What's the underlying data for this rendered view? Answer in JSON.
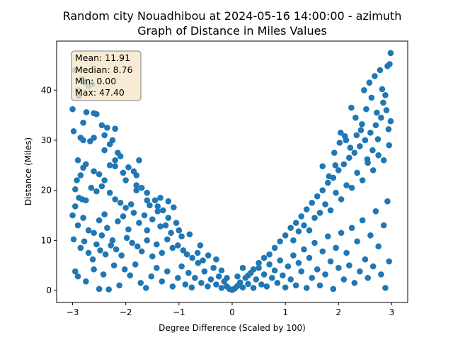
{
  "chart_data": {
    "type": "scatter",
    "title_line1": "Random city Nouadhibou at 2024-05-16 14:00:00  - azimuth",
    "title_line2": "Graph of Distance in Miles Values",
    "xlabel": "Degree Difference (Scaled by 100)",
    "ylabel": "Distance (Miles)",
    "xlim": [
      -3.3,
      3.3
    ],
    "ylim": [
      -2.4,
      49.8
    ],
    "xticks": [
      -3,
      -2,
      -1,
      0,
      1,
      2,
      3
    ],
    "yticks": [
      0,
      10,
      20,
      30,
      40
    ],
    "grid": false,
    "marker_color": "#1f77b4",
    "stats": {
      "mean": "Mean: 11.91",
      "median": "Median: 8.76",
      "min": "Min: 0.00",
      "max": "Max: 47.40"
    },
    "stats_box_color": "#f5e6c8",
    "points": [
      [
        -3.0,
        36.2
      ],
      [
        -2.98,
        31.8
      ],
      [
        -2.95,
        44.0
      ],
      [
        -2.9,
        40.0
      ],
      [
        -2.88,
        38.8
      ],
      [
        -2.85,
        30.5
      ],
      [
        -2.83,
        42.2
      ],
      [
        -2.8,
        30.0
      ],
      [
        -2.77,
        41.5
      ],
      [
        -2.74,
        35.6
      ],
      [
        -2.7,
        40.8
      ],
      [
        -2.67,
        29.8
      ],
      [
        -2.63,
        41.2
      ],
      [
        -2.6,
        35.4
      ],
      [
        -2.55,
        35.2
      ],
      [
        -2.45,
        33.0
      ],
      [
        -2.4,
        31.0
      ],
      [
        -2.35,
        32.5
      ],
      [
        -2.3,
        29.2
      ],
      [
        -2.25,
        30.0
      ],
      [
        -2.2,
        32.3
      ],
      [
        -2.15,
        27.5
      ],
      [
        -2.1,
        26.8
      ],
      [
        -2.05,
        23.5
      ],
      [
        -2.9,
        26.0
      ],
      [
        -2.85,
        23.0
      ],
      [
        -2.8,
        24.5
      ],
      [
        -2.75,
        25.2
      ],
      [
        -2.6,
        23.8
      ],
      [
        -2.5,
        23.2
      ],
      [
        -2.4,
        22.0
      ],
      [
        -2.3,
        25.0
      ],
      [
        -2.2,
        24.8
      ],
      [
        -1.95,
        24.6
      ],
      [
        -1.85,
        23.8
      ],
      [
        -1.8,
        23.0
      ],
      [
        -1.75,
        26.0
      ],
      [
        -2.95,
        20.2
      ],
      [
        -2.92,
        22.0
      ],
      [
        -2.88,
        18.5
      ],
      [
        -2.82,
        18.2
      ],
      [
        -2.75,
        18.0
      ],
      [
        -2.65,
        20.5
      ],
      [
        -2.55,
        19.8
      ],
      [
        -2.45,
        20.8
      ],
      [
        -2.3,
        19.5
      ],
      [
        -2.2,
        18.2
      ],
      [
        -2.1,
        17.5
      ],
      [
        -2.0,
        16.5
      ],
      [
        -1.9,
        17.2
      ],
      [
        -1.8,
        21.0
      ],
      [
        -1.7,
        20.5
      ],
      [
        -1.6,
        19.5
      ],
      [
        -1.55,
        17.0
      ],
      [
        -1.45,
        18.0
      ],
      [
        -1.35,
        18.5
      ],
      [
        -1.3,
        16.0
      ],
      [
        -1.2,
        17.8
      ],
      [
        -1.1,
        16.6
      ],
      [
        -3.0,
        15.0
      ],
      [
        -2.95,
        16.8
      ],
      [
        -2.9,
        13.0
      ],
      [
        -2.8,
        14.5
      ],
      [
        -2.7,
        12.0
      ],
      [
        -2.6,
        11.5
      ],
      [
        -2.5,
        14.0
      ],
      [
        -2.45,
        11.0
      ],
      [
        -2.4,
        15.2
      ],
      [
        -2.35,
        12.5
      ],
      [
        -2.25,
        10.0
      ],
      [
        -2.15,
        13.8
      ],
      [
        -2.05,
        14.8
      ],
      [
        -1.95,
        12.2
      ],
      [
        -1.85,
        15.5
      ],
      [
        -1.75,
        13.5
      ],
      [
        -1.65,
        15.0
      ],
      [
        -1.6,
        12.0
      ],
      [
        -1.5,
        14.2
      ],
      [
        -1.4,
        15.8
      ],
      [
        -1.35,
        12.8
      ],
      [
        -1.25,
        13.0
      ],
      [
        -1.15,
        11.5
      ],
      [
        -1.05,
        13.5
      ],
      [
        -0.95,
        10.8
      ],
      [
        -2.98,
        10.2
      ],
      [
        -2.85,
        8.5
      ],
      [
        -2.78,
        9.8
      ],
      [
        -2.7,
        7.5
      ],
      [
        -2.62,
        6.2
      ],
      [
        -2.55,
        9.2
      ],
      [
        -2.48,
        8.0
      ],
      [
        -2.38,
        7.2
      ],
      [
        -2.28,
        9.0
      ],
      [
        -2.18,
        8.2
      ],
      [
        -2.08,
        7.0
      ],
      [
        -1.98,
        10.5
      ],
      [
        -1.88,
        9.5
      ],
      [
        -1.78,
        8.8
      ],
      [
        -1.7,
        7.8
      ],
      [
        -1.6,
        10.0
      ],
      [
        -1.5,
        6.8
      ],
      [
        -1.42,
        9.2
      ],
      [
        -1.32,
        7.5
      ],
      [
        -1.22,
        10.2
      ],
      [
        -1.12,
        8.5
      ],
      [
        -1.02,
        9.0
      ],
      [
        -0.92,
        8.0
      ],
      [
        -0.85,
        7.2
      ],
      [
        -0.75,
        6.5
      ],
      [
        -0.65,
        7.5
      ],
      [
        -0.55,
        6.0
      ],
      [
        -0.45,
        7.0
      ],
      [
        -2.95,
        3.8
      ],
      [
        -2.9,
        2.8
      ],
      [
        -2.75,
        1.8
      ],
      [
        -2.6,
        4.2
      ],
      [
        -2.5,
        0.3
      ],
      [
        -2.42,
        3.2
      ],
      [
        -2.32,
        0.2
      ],
      [
        -2.22,
        5.0
      ],
      [
        -2.12,
        1.0
      ],
      [
        -2.02,
        4.2
      ],
      [
        -1.92,
        3.0
      ],
      [
        -1.82,
        5.2
      ],
      [
        -1.72,
        1.5
      ],
      [
        -1.62,
        0.5
      ],
      [
        -1.52,
        2.8
      ],
      [
        -1.42,
        4.5
      ],
      [
        -1.32,
        1.8
      ],
      [
        -1.22,
        3.8
      ],
      [
        -1.12,
        0.8
      ],
      [
        -1.02,
        2.5
      ],
      [
        -0.95,
        4.8
      ],
      [
        -0.88,
        1.2
      ],
      [
        -0.82,
        3.5
      ],
      [
        -0.76,
        0.6
      ],
      [
        -0.7,
        2.5
      ],
      [
        -0.64,
        5.5
      ],
      [
        -0.58,
        1.5
      ],
      [
        -0.52,
        3.8
      ],
      [
        -0.46,
        0.8
      ],
      [
        -0.4,
        2.2
      ],
      [
        -0.35,
        4.5
      ],
      [
        -0.3,
        1.2
      ],
      [
        -0.25,
        2.8
      ],
      [
        -0.2,
        0.5
      ],
      [
        -0.15,
        1.8
      ],
      [
        -0.1,
        0.8
      ],
      [
        -0.05,
        0.3
      ],
      [
        0.0,
        0.1
      ],
      [
        0.05,
        0.4
      ],
      [
        0.1,
        0.9
      ],
      [
        0.15,
        1.6
      ],
      [
        0.2,
        0.6
      ],
      [
        0.25,
        2.5
      ],
      [
        0.3,
        1.3
      ],
      [
        0.35,
        3.5
      ],
      [
        0.4,
        0.5
      ],
      [
        0.45,
        2.2
      ],
      [
        0.5,
        4.5
      ],
      [
        0.55,
        1.2
      ],
      [
        0.6,
        3.2
      ],
      [
        0.65,
        0.8
      ],
      [
        0.7,
        5.2
      ],
      [
        0.75,
        2.5
      ],
      [
        0.8,
        4.0
      ],
      [
        0.85,
        1.5
      ],
      [
        0.9,
        6.0
      ],
      [
        0.95,
        3.0
      ],
      [
        1.0,
        0.6
      ],
      [
        1.05,
        4.8
      ],
      [
        1.1,
        2.2
      ],
      [
        1.15,
        7.0
      ],
      [
        1.2,
        1.0
      ],
      [
        1.25,
        5.5
      ],
      [
        1.3,
        3.8
      ],
      [
        1.35,
        8.2
      ],
      [
        1.4,
        0.5
      ],
      [
        1.45,
        6.5
      ],
      [
        1.5,
        2.5
      ],
      [
        1.55,
        9.5
      ],
      [
        1.6,
        4.2
      ],
      [
        1.65,
        1.0
      ],
      [
        1.7,
        7.8
      ],
      [
        1.75,
        3.2
      ],
      [
        1.8,
        10.8
      ],
      [
        1.85,
        5.8
      ],
      [
        1.9,
        0.3
      ],
      [
        1.95,
        8.5
      ],
      [
        2.0,
        4.5
      ],
      [
        2.05,
        11.5
      ],
      [
        2.1,
        2.2
      ],
      [
        2.15,
        7.5
      ],
      [
        2.2,
        5.0
      ],
      [
        2.25,
        12.5
      ],
      [
        2.3,
        1.5
      ],
      [
        2.35,
        9.8
      ],
      [
        2.4,
        3.8
      ],
      [
        2.45,
        14.0
      ],
      [
        2.5,
        6.2
      ],
      [
        2.55,
        2.5
      ],
      [
        2.6,
        11.0
      ],
      [
        2.65,
        4.8
      ],
      [
        2.7,
        15.8
      ],
      [
        2.75,
        8.8
      ],
      [
        2.8,
        3.2
      ],
      [
        2.85,
        13.0
      ],
      [
        2.88,
        0.5
      ],
      [
        2.92,
        17.8
      ],
      [
        2.95,
        5.8
      ],
      [
        0.3,
        3.0
      ],
      [
        0.4,
        4.2
      ],
      [
        0.5,
        5.5
      ],
      [
        0.6,
        6.5
      ],
      [
        0.7,
        7.2
      ],
      [
        0.8,
        8.5
      ],
      [
        0.9,
        9.8
      ],
      [
        1.0,
        11.0
      ],
      [
        1.1,
        12.5
      ],
      [
        1.2,
        13.5
      ],
      [
        1.3,
        14.8
      ],
      [
        1.4,
        16.2
      ],
      [
        1.5,
        17.5
      ],
      [
        1.6,
        18.8
      ],
      [
        1.7,
        20.0
      ],
      [
        1.8,
        21.5
      ],
      [
        1.9,
        22.5
      ],
      [
        2.0,
        24.0
      ],
      [
        2.1,
        25.2
      ],
      [
        2.2,
        26.5
      ],
      [
        2.3,
        27.5
      ],
      [
        2.4,
        28.8
      ],
      [
        2.5,
        30.0
      ],
      [
        2.6,
        31.5
      ],
      [
        2.7,
        33.0
      ],
      [
        2.8,
        34.5
      ],
      [
        2.9,
        36.0
      ],
      [
        1.15,
        10.0
      ],
      [
        1.25,
        11.8
      ],
      [
        1.35,
        13.0
      ],
      [
        1.45,
        12.0
      ],
      [
        1.55,
        14.5
      ],
      [
        1.65,
        15.5
      ],
      [
        1.75,
        17.2
      ],
      [
        1.85,
        16.0
      ],
      [
        1.95,
        19.5
      ],
      [
        2.05,
        18.2
      ],
      [
        2.15,
        21.0
      ],
      [
        2.25,
        20.5
      ],
      [
        2.35,
        23.5
      ],
      [
        2.45,
        22.0
      ],
      [
        2.55,
        25.5
      ],
      [
        2.65,
        24.0
      ],
      [
        2.75,
        27.0
      ],
      [
        2.85,
        26.0
      ],
      [
        2.95,
        29.0
      ],
      [
        1.7,
        24.8
      ],
      [
        1.82,
        22.8
      ],
      [
        1.92,
        27.5
      ],
      [
        2.02,
        29.5
      ],
      [
        2.12,
        30.8
      ],
      [
        2.22,
        28.5
      ],
      [
        2.32,
        34.5
      ],
      [
        2.42,
        32.0
      ],
      [
        2.52,
        36.2
      ],
      [
        2.62,
        38.5
      ],
      [
        2.72,
        35.5
      ],
      [
        2.82,
        40.2
      ],
      [
        2.92,
        44.8
      ],
      [
        2.98,
        47.4
      ],
      [
        2.96,
        45.2
      ],
      [
        2.78,
        44.0
      ],
      [
        2.58,
        41.5
      ],
      [
        2.48,
        40.0
      ],
      [
        2.68,
        42.8
      ],
      [
        2.88,
        39.0
      ],
      [
        2.98,
        33.8
      ],
      [
        2.94,
        32.2
      ],
      [
        2.84,
        37.5
      ],
      [
        2.74,
        30.2
      ],
      [
        2.64,
        28.0
      ],
      [
        2.54,
        26.2
      ],
      [
        2.44,
        33.2
      ],
      [
        2.34,
        31.0
      ],
      [
        2.24,
        36.5
      ],
      [
        2.14,
        30.0
      ],
      [
        2.04,
        31.5
      ],
      [
        1.94,
        25.0
      ],
      [
        -0.3,
        6.2
      ],
      [
        -0.2,
        4.0
      ],
      [
        -0.1,
        2.5
      ],
      [
        0.1,
        2.8
      ],
      [
        0.2,
        4.5
      ],
      [
        -0.6,
        9.0
      ],
      [
        -0.8,
        11.2
      ],
      [
        -1.0,
        12.0
      ],
      [
        -1.2,
        14.5
      ],
      [
        -1.4,
        16.8
      ],
      [
        -1.6,
        18.0
      ],
      [
        -1.8,
        20.0
      ],
      [
        -2.0,
        22.0
      ],
      [
        -2.2,
        26.0
      ],
      [
        -2.4,
        28.0
      ],
      [
        -2.6,
        30.5
      ],
      [
        -2.8,
        33.5
      ]
    ]
  }
}
